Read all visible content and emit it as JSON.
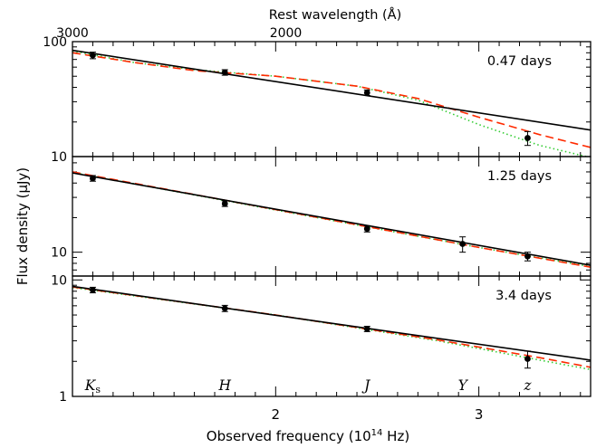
{
  "chart_data": {
    "type": "scatter",
    "x_axis": {
      "label": "Observed frequency (10",
      "label_sup": "14",
      "label_tail": " Hz)",
      "range": [
        1.0,
        3.55
      ],
      "major_ticks": [
        2,
        3
      ],
      "major_tick_labels": [
        "2",
        "3"
      ],
      "scale": "linear"
    },
    "top_axis": {
      "label": "Rest wavelength (Å)",
      "tick_labels": [
        "3000",
        "2000"
      ],
      "tick_frequencies": [
        1.0,
        2.05
      ]
    },
    "y_axis_label": "Flux density (μJy)",
    "y_scale": "log",
    "bands": [
      {
        "name": "K",
        "sub": "s",
        "x": 1.1
      },
      {
        "name": "H",
        "sub": "",
        "x": 1.75
      },
      {
        "name": "J",
        "sub": "",
        "x": 2.45
      },
      {
        "name": "Y",
        "sub": "",
        "x": 2.92
      },
      {
        "name": "z",
        "sub": "",
        "x": 3.24
      }
    ],
    "panels": [
      {
        "label": "0.47 days",
        "ylim": [
          10,
          100
        ],
        "ticks": [
          10,
          100
        ],
        "tick_labels": [
          "10",
          "100"
        ],
        "points": [
          {
            "x": 1.1,
            "y": 76,
            "err": 5
          },
          {
            "x": 1.75,
            "y": 54,
            "err": 3
          },
          {
            "x": 2.45,
            "y": 36,
            "err": 2
          },
          {
            "x": 3.24,
            "y": 14.5,
            "err": 2
          }
        ],
        "solid": [
          [
            1.0,
            84
          ],
          [
            3.55,
            17
          ]
        ],
        "dashed": [
          [
            1.0,
            80
          ],
          [
            1.3,
            66
          ],
          [
            1.6,
            56
          ],
          [
            2.0,
            50
          ],
          [
            2.4,
            41
          ],
          [
            2.7,
            32
          ],
          [
            3.0,
            22
          ],
          [
            3.3,
            15.5
          ],
          [
            3.55,
            12
          ]
        ],
        "dotted": [
          [
            1.0,
            83
          ],
          [
            1.3,
            66
          ],
          [
            1.6,
            57
          ],
          [
            2.0,
            50
          ],
          [
            2.4,
            41
          ],
          [
            2.7,
            31
          ],
          [
            3.0,
            19
          ],
          [
            3.3,
            12.5
          ],
          [
            3.55,
            9.8
          ]
        ]
      },
      {
        "label": "1.25 days",
        "ylim": [
          6.2,
          68
        ],
        "ticks": [
          10
        ],
        "tick_labels": [
          "10"
        ],
        "points": [
          {
            "x": 1.1,
            "y": 44,
            "err": 2.5
          },
          {
            "x": 1.75,
            "y": 26.5,
            "err": 1.5
          },
          {
            "x": 2.45,
            "y": 16,
            "err": 1
          },
          {
            "x": 2.92,
            "y": 11.8,
            "err": 1.8
          },
          {
            "x": 3.24,
            "y": 9.2,
            "err": 0.8
          }
        ],
        "solid": [
          [
            1.0,
            49
          ],
          [
            3.55,
            7.7
          ]
        ],
        "dashed": [
          [
            1.0,
            50
          ],
          [
            2.0,
            23.5
          ],
          [
            3.0,
            11
          ],
          [
            3.55,
            7.4
          ]
        ],
        "dotted": [
          [
            1.0,
            49.5
          ],
          [
            2.0,
            23.3
          ],
          [
            3.0,
            11
          ],
          [
            3.55,
            7.5
          ]
        ]
      },
      {
        "label": "3.4 days",
        "ylim": [
          1,
          10.8
        ],
        "ticks": [
          1,
          10
        ],
        "tick_labels": [
          "1",
          "10"
        ],
        "points": [
          {
            "x": 1.1,
            "y": 8.2,
            "err": 0.45
          },
          {
            "x": 1.75,
            "y": 5.7,
            "err": 0.35
          },
          {
            "x": 2.45,
            "y": 3.8,
            "err": 0.2
          },
          {
            "x": 3.24,
            "y": 2.1,
            "err": 0.35
          }
        ],
        "solid": [
          [
            1.0,
            8.8
          ],
          [
            3.55,
            2.05
          ]
        ],
        "dashed": [
          [
            1.0,
            8.7
          ],
          [
            2.0,
            5.0
          ],
          [
            2.8,
            3.05
          ],
          [
            3.3,
            2.15
          ],
          [
            3.55,
            1.78
          ]
        ],
        "dotted": [
          [
            1.0,
            8.6
          ],
          [
            2.0,
            5.0
          ],
          [
            2.8,
            3.0
          ],
          [
            3.3,
            2.05
          ],
          [
            3.55,
            1.7
          ]
        ]
      }
    ],
    "line_colors": {
      "solid": "#000000",
      "dashed": "#ff2a00",
      "dotted": "#33cc33"
    }
  }
}
